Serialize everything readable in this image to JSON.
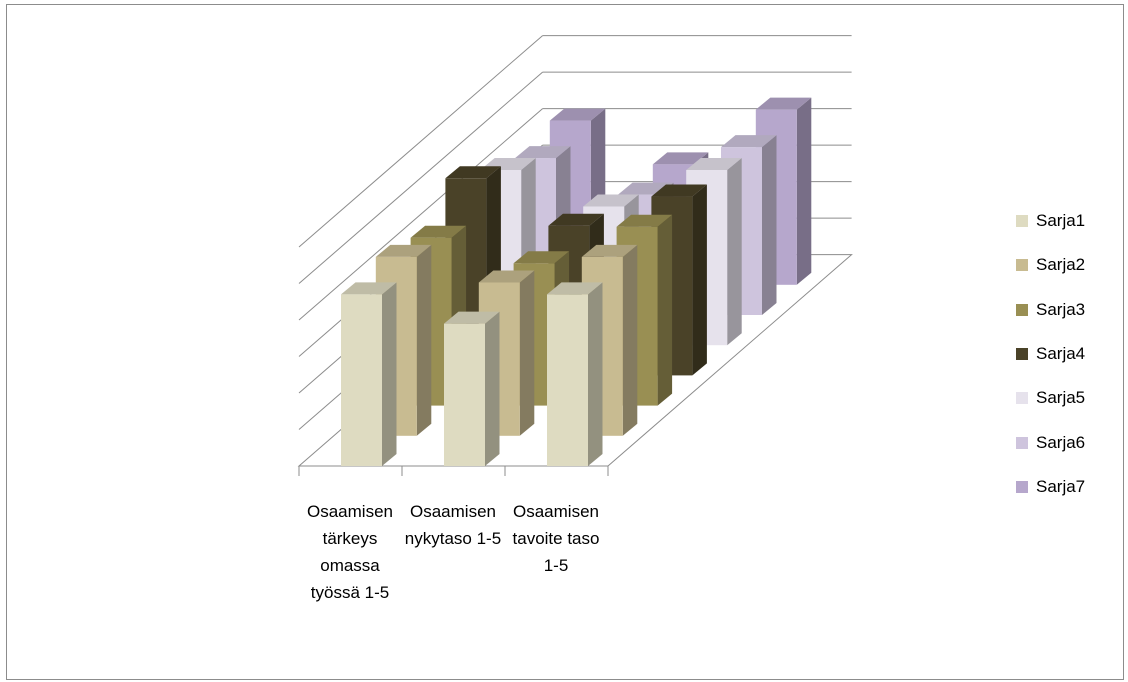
{
  "chart_data": {
    "type": "bar",
    "subtype": "3d-column",
    "categories": [
      "Osaamisen tärkeys omassa työssä  1-5",
      "Osaamisen nykytaso 1-5",
      "Osaamisen tavoite taso 1-5"
    ],
    "series": [
      {
        "name": "Sarja1",
        "color": "#dedbc1",
        "values": [
          4.7,
          3.9,
          4.7
        ]
      },
      {
        "name": "Sarja2",
        "color": "#c8bb91",
        "values": [
          4.9,
          4.2,
          4.9
        ]
      },
      {
        "name": "Sarja3",
        "color": "#998f53",
        "values": [
          4.6,
          3.9,
          4.9
        ]
      },
      {
        "name": "Sarja4",
        "color": "#4a4228",
        "values": [
          5.4,
          4.1,
          4.9
        ]
      },
      {
        "name": "Sarja5",
        "color": "#e6e2ec",
        "values": [
          4.8,
          3.8,
          4.8
        ]
      },
      {
        "name": "Sarja6",
        "color": "#cec4dd",
        "values": [
          4.3,
          3.3,
          4.6
        ]
      },
      {
        "name": "Sarja7",
        "color": "#b6a7cc",
        "values": [
          4.5,
          3.3,
          4.8
        ]
      }
    ],
    "ylim": [
      0,
      6
    ],
    "grid": true,
    "legend_position": "right"
  }
}
